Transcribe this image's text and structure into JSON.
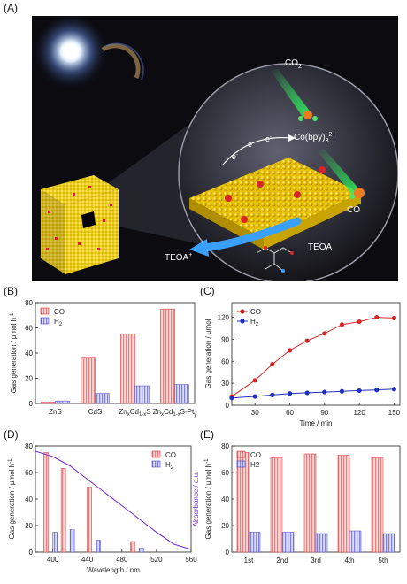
{
  "panels": {
    "A": "(A)",
    "B": "(B)",
    "C": "(C)",
    "D": "(D)",
    "E": "(E)"
  },
  "scene": {
    "label_co2": "CO",
    "label_co2_sub": "2",
    "label_co": "CO",
    "label_cobpy": "Co(bpy)",
    "label_cobpy_sub": "3",
    "label_cobpy_sup": "2+",
    "label_e": "e",
    "label_e_sup": "-",
    "label_teoa_plus": "TEOA",
    "label_teoa_plus_sup": "+",
    "label_teoa": "TEOA"
  },
  "chart_data": [
    {
      "id": "B",
      "type": "bar",
      "ylabel": "Gas generation / µmol h",
      "ylabel_sup": "-1",
      "categories": [
        "ZnS",
        "CdS",
        "Zn(x)Cd(1-x)S",
        "Zn(x)Cd(1-x)S-Pt(y)"
      ],
      "category_labels": [
        {
          "main": "ZnS"
        },
        {
          "main": "CdS"
        },
        {
          "main": "Zn",
          "s1": "x",
          "m2": "Cd",
          "s2": "1-x",
          "m3": "S"
        },
        {
          "main": "Zn",
          "s1": "x",
          "m2": "Cd",
          "s2": "1-x",
          "m3": "S-Pt",
          "s3": "y"
        }
      ],
      "series": [
        {
          "name": "CO",
          "values": [
            1,
            36,
            55,
            75
          ]
        },
        {
          "name": "H2",
          "values": [
            2,
            8,
            14,
            15
          ]
        }
      ],
      "legend": [
        {
          "text": "CO"
        },
        {
          "text": "H",
          "sub": "2"
        }
      ],
      "ylim": [
        0,
        80
      ],
      "yticks": [
        0,
        20,
        40,
        60,
        80
      ],
      "legend_position": "top-left"
    },
    {
      "id": "C",
      "type": "line",
      "xlabel": "Time / min",
      "ylabel": "Gas generation / µmol",
      "series": [
        {
          "name": "CO",
          "color": "#d62728",
          "x": [
            10,
            30,
            45,
            60,
            75,
            90,
            105,
            120,
            135,
            150
          ],
          "y": [
            12,
            34,
            56,
            75,
            88,
            98,
            110,
            114,
            120,
            119
          ]
        },
        {
          "name": "H2",
          "color": "#1f2fbf",
          "x": [
            10,
            30,
            45,
            60,
            75,
            90,
            105,
            120,
            135,
            150
          ],
          "y": [
            10,
            12,
            14,
            16,
            17,
            18,
            19,
            20,
            21,
            22
          ]
        }
      ],
      "legend": [
        {
          "text": "CO"
        },
        {
          "text": "H",
          "sub": "2"
        }
      ],
      "xlim": [
        10,
        155
      ],
      "ylim": [
        0,
        140
      ],
      "xticks": [
        30,
        60,
        90,
        120,
        150
      ],
      "yticks": [
        0,
        30,
        60,
        90,
        120
      ],
      "legend_position": "top-left"
    },
    {
      "id": "D",
      "type": "bar",
      "xlabel": "Wavelength / nm",
      "ylabel": "Gas generation / µmol h",
      "ylabel_sup": "-1",
      "y2label": "Absorbance / a.u.",
      "wavelengths": [
        400,
        420,
        450,
        500,
        550
      ],
      "series": [
        {
          "name": "CO",
          "values": [
            75,
            63,
            49,
            8,
            0
          ]
        },
        {
          "name": "H2",
          "values": [
            15,
            17,
            9,
            3,
            0
          ]
        }
      ],
      "absorbance": {
        "x": [
          380,
          400,
          420,
          440,
          460,
          480,
          500,
          520,
          540,
          560
        ],
        "y": [
          76,
          72,
          65,
          55,
          45,
          35,
          25,
          15,
          6,
          2
        ]
      },
      "legend": [
        {
          "text": "CO"
        },
        {
          "text": "H",
          "sub": "2"
        }
      ],
      "xlim": [
        380,
        560
      ],
      "ylim": [
        0,
        80
      ],
      "xticks": [
        400,
        440,
        480,
        520,
        560
      ],
      "yticks": [
        0,
        20,
        40,
        60,
        80
      ],
      "legend_position": "top-right"
    },
    {
      "id": "E",
      "type": "bar",
      "ylabel": "Gas generation / µmol h",
      "ylabel_sup": "-1",
      "categories": [
        "1st",
        "2nd",
        "3rd",
        "4th",
        "5th"
      ],
      "series": [
        {
          "name": "CO",
          "values": [
            75,
            71,
            74,
            73,
            71
          ]
        },
        {
          "name": "H2",
          "values": [
            15,
            15,
            14,
            16,
            14
          ]
        }
      ],
      "legend": [
        {
          "text": "CO"
        },
        {
          "text": "H2"
        }
      ],
      "ylim": [
        0,
        80
      ],
      "yticks": [
        0,
        20,
        40,
        60,
        80
      ],
      "legend_position": "top-left"
    }
  ]
}
